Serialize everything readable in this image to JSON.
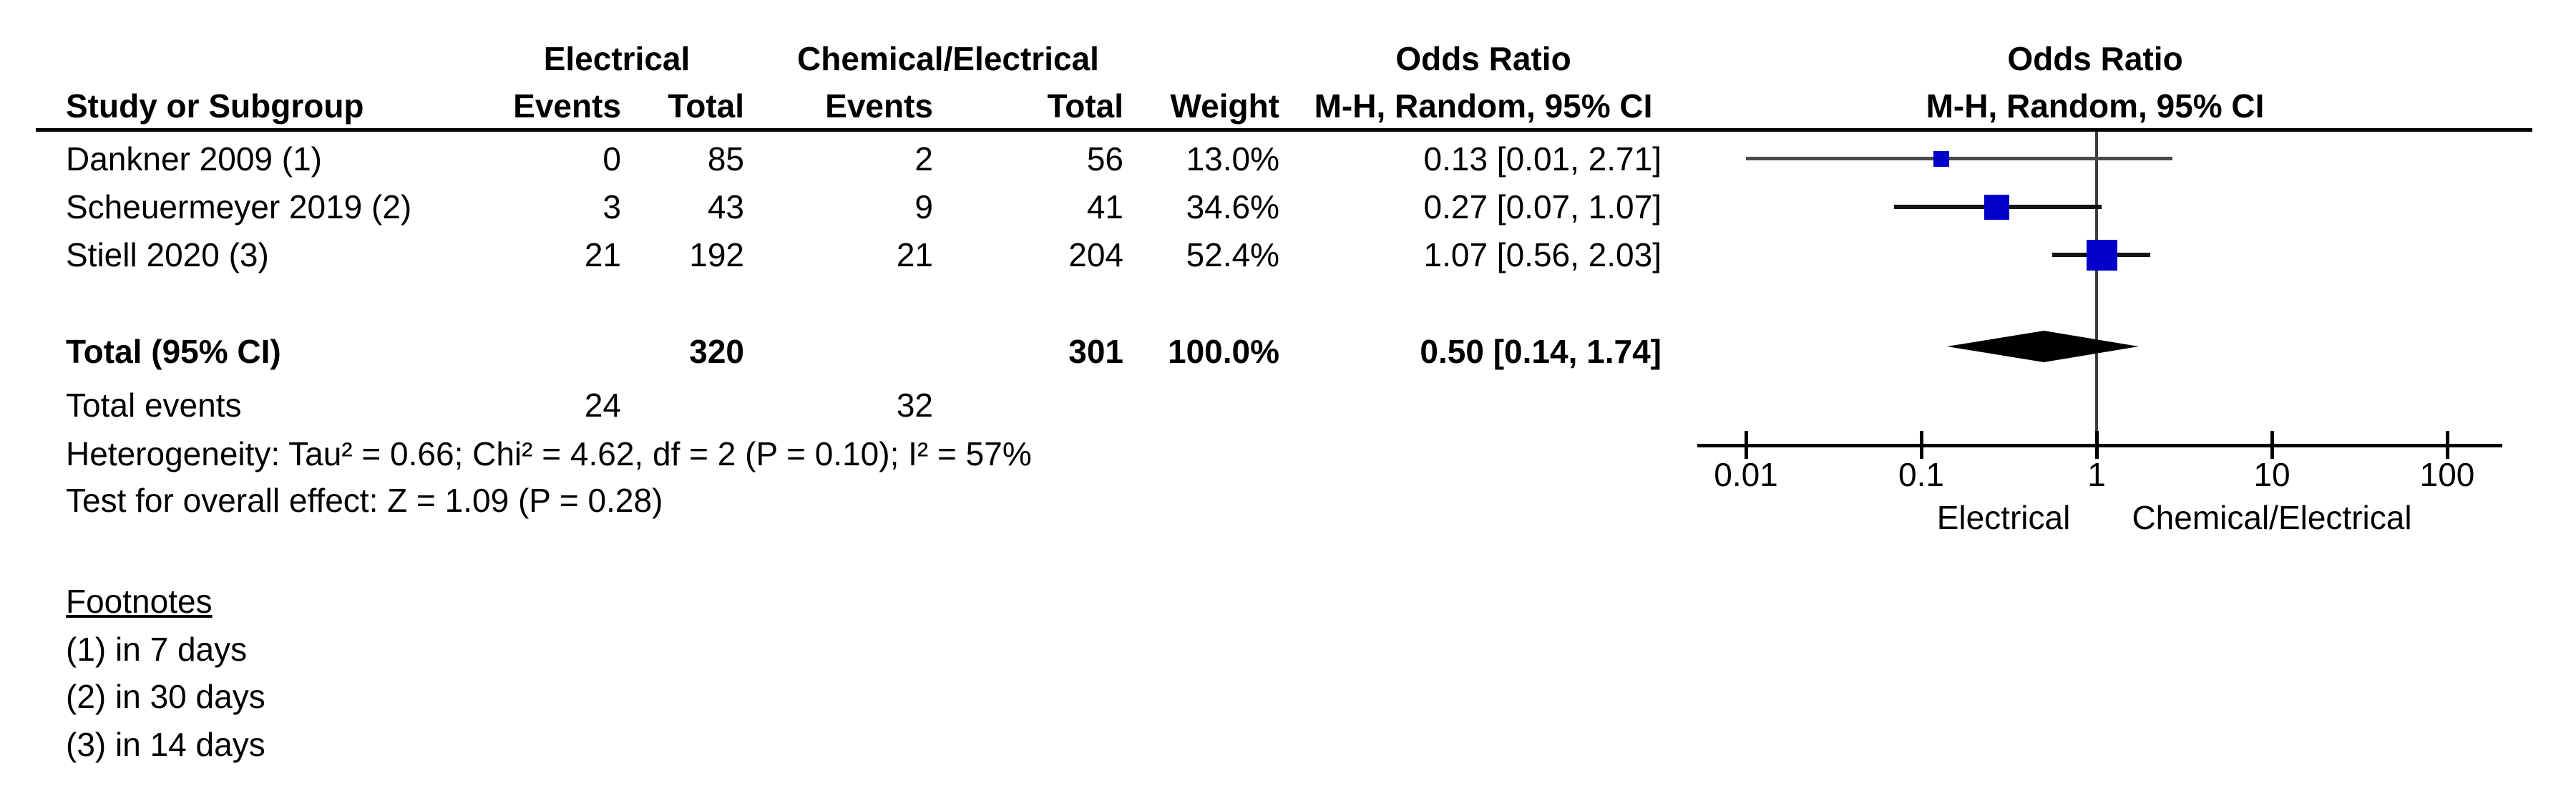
{
  "table": {
    "headers": {
      "group_electrical": "Electrical",
      "group_chemical": "Chemical/Electrical",
      "or_title_text": "Odds Ratio",
      "or_title_graph": "Odds Ratio",
      "study": "Study or Subgroup",
      "events": "Events",
      "total": "Total",
      "weight": "Weight",
      "mh_ci": "M-H, Random, 95% CI"
    },
    "studies": [
      {
        "name": "Dankner 2009 (1)",
        "events1": "0",
        "total1": "85",
        "events2": "2",
        "total2": "56",
        "weight": "13.0%",
        "or_ci": "0.13 [0.01, 2.71]"
      },
      {
        "name": "Scheuermeyer 2019 (2)",
        "events1": "3",
        "total1": "43",
        "events2": "9",
        "total2": "41",
        "weight": "34.6%",
        "or_ci": "0.27 [0.07, 1.07]"
      },
      {
        "name": "Stiell 2020 (3)",
        "events1": "21",
        "total1": "192",
        "events2": "21",
        "total2": "204",
        "weight": "52.4%",
        "or_ci": "1.07 [0.56, 2.03]"
      }
    ],
    "total_row": {
      "label": "Total (95% CI)",
      "total1": "320",
      "total2": "301",
      "weight": "100.0%",
      "or_ci": "0.50 [0.14, 1.74]"
    },
    "total_events": {
      "label": "Total events",
      "v1": "24",
      "v2": "32"
    },
    "heterogeneity": "Heterogeneity: Tau² = 0.66; Chi² = 4.62, df = 2 (P = 0.10); I² = 57%",
    "overall_effect": "Test for overall effect: Z = 1.09 (P = 0.28)"
  },
  "footnotes": {
    "title": "Footnotes",
    "items": [
      "(1) in 7 days",
      "(2) in 30 days",
      "(3) in 14 days"
    ]
  },
  "chart_data": {
    "type": "forest",
    "effect_measure": "Odds Ratio",
    "method": "M-H, Random, 95% CI",
    "x_axis": {
      "scale": "log",
      "min": 0.01,
      "max": 100,
      "ticks": [
        0.01,
        0.1,
        1,
        10,
        100
      ],
      "left_label": "Electrical",
      "right_label": "Chemical/Electrical"
    },
    "studies": [
      {
        "name": "Dankner 2009 (1)",
        "or": 0.13,
        "ci_low": 0.01,
        "ci_high": 2.71,
        "weight_pct": 13.0
      },
      {
        "name": "Scheuermeyer 2019 (2)",
        "or": 0.27,
        "ci_low": 0.07,
        "ci_high": 1.07,
        "weight_pct": 34.6
      },
      {
        "name": "Stiell 2020 (3)",
        "or": 1.07,
        "ci_low": 0.56,
        "ci_high": 2.03,
        "weight_pct": 52.4
      }
    ],
    "total": {
      "or": 0.5,
      "ci_low": 0.14,
      "ci_high": 1.74,
      "weight_pct": 100.0
    },
    "marker_color": "#0000c8",
    "diamond_color": "#000000"
  }
}
